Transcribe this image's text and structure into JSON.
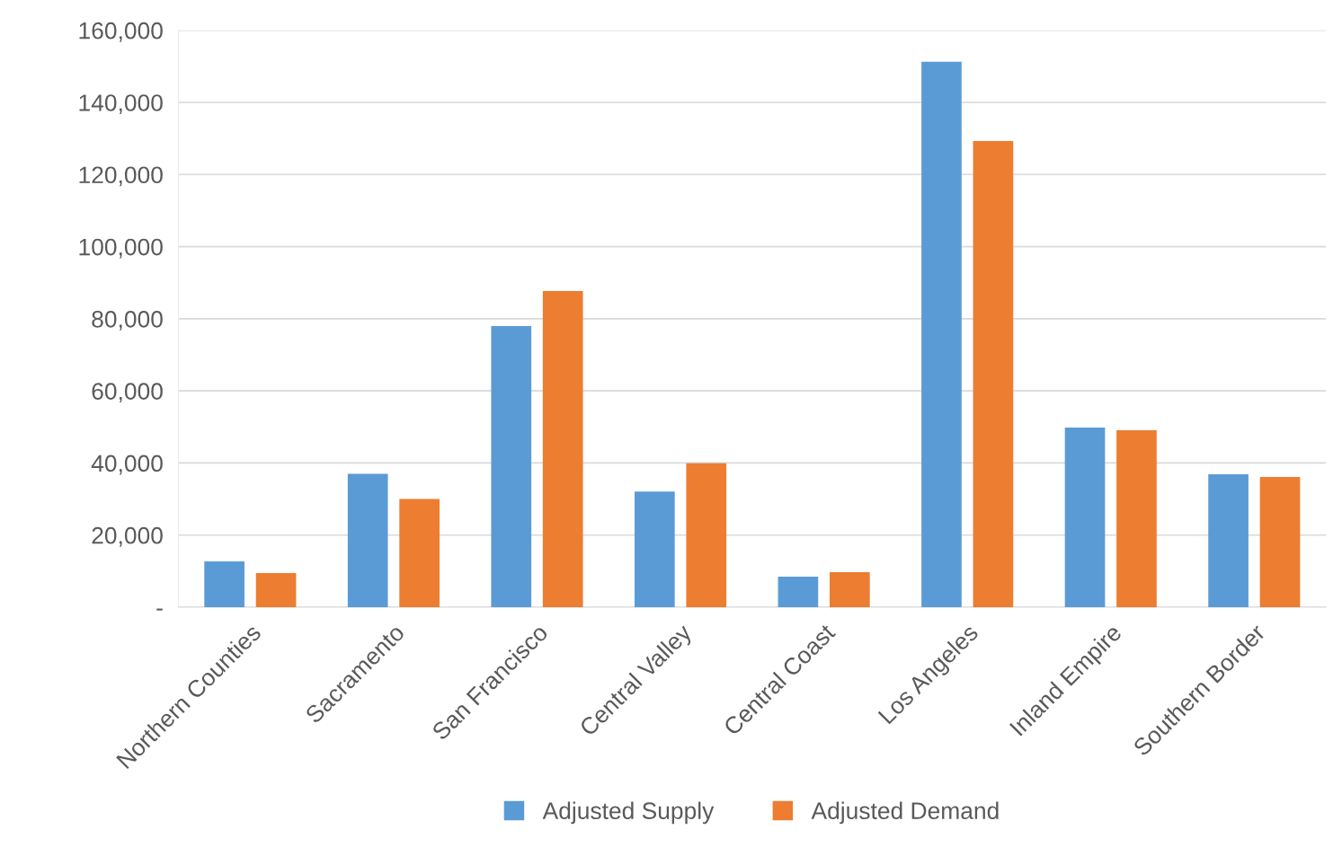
{
  "chart_data": {
    "type": "bar",
    "categories": [
      "Northern Counties",
      "Sacramento",
      "San Francisco",
      "Central Valley",
      "Central Coast",
      "Los Angeles",
      "Inland Empire",
      "Southern Border"
    ],
    "series": [
      {
        "name": "Adjusted Supply",
        "color": "#5b9bd5",
        "values": [
          12700,
          37000,
          78000,
          32100,
          8500,
          151300,
          49800,
          36900
        ]
      },
      {
        "name": "Adjusted Demand",
        "color": "#ed7d31",
        "values": [
          9500,
          30000,
          87700,
          39900,
          9700,
          129300,
          49100,
          36100
        ]
      }
    ],
    "ylim": [
      0,
      160000
    ],
    "yticks": [
      {
        "value": 0,
        "label": "-"
      },
      {
        "value": 20000,
        "label": "20,000"
      },
      {
        "value": 40000,
        "label": "40,000"
      },
      {
        "value": 60000,
        "label": "60,000"
      },
      {
        "value": 80000,
        "label": "80,000"
      },
      {
        "value": 100000,
        "label": "100,000"
      },
      {
        "value": 120000,
        "label": "120,000"
      },
      {
        "value": 140000,
        "label": "140,000"
      },
      {
        "value": 160000,
        "label": "160,000"
      }
    ],
    "grid": "y",
    "legend": "bottom"
  }
}
